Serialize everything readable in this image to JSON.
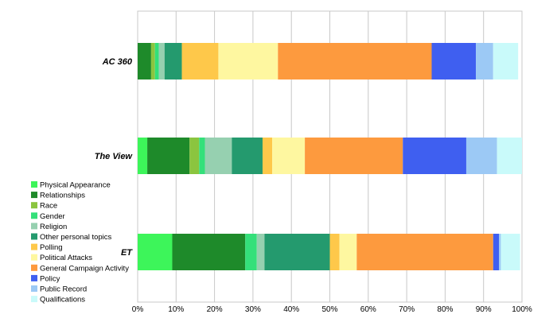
{
  "chart_data": {
    "type": "bar",
    "orientation": "horizontal",
    "stacked": "percent",
    "title": "",
    "xlabel": "",
    "ylabel": "",
    "xlim": [
      0,
      100
    ],
    "x_ticks": [
      "0%",
      "10%",
      "20%",
      "30%",
      "40%",
      "50%",
      "60%",
      "70%",
      "80%",
      "90%",
      "100%"
    ],
    "grid": "vertical",
    "legend_position": "left",
    "categories": [
      "AC 360",
      "The View",
      "ET"
    ],
    "series": [
      {
        "name": "Physical Appearance",
        "color": "#3df55a",
        "values": [
          0.0,
          2.5,
          9.0
        ]
      },
      {
        "name": "Relationships",
        "color": "#1e8a2a",
        "values": [
          3.5,
          11.0,
          19.0
        ]
      },
      {
        "name": "Race",
        "color": "#8bc53f",
        "values": [
          1.0,
          2.5,
          0.0
        ]
      },
      {
        "name": "Gender",
        "color": "#34e07a",
        "values": [
          1.0,
          1.5,
          3.0
        ]
      },
      {
        "name": "Religion",
        "color": "#96d0b0",
        "values": [
          1.5,
          7.0,
          2.0
        ]
      },
      {
        "name": "Other personal topics",
        "color": "#249a6e",
        "values": [
          4.5,
          8.0,
          17.0
        ]
      },
      {
        "name": "Polling",
        "color": "#fec84a",
        "values": [
          9.5,
          2.5,
          2.5
        ]
      },
      {
        "name": "Political Attacks",
        "color": "#fef7a0",
        "values": [
          15.5,
          8.5,
          4.5
        ]
      },
      {
        "name": "General Campaign Activity",
        "color": "#fd9a3e",
        "values": [
          40.0,
          25.5,
          35.5
        ]
      },
      {
        "name": "Policy",
        "color": "#3f5ff0",
        "values": [
          11.5,
          16.5,
          1.5
        ]
      },
      {
        "name": "Public Record",
        "color": "#9cc9f5",
        "values": [
          4.5,
          8.0,
          0.5
        ]
      },
      {
        "name": "Qualifications",
        "color": "#c9fafa",
        "values": [
          6.5,
          6.5,
          5.0
        ]
      }
    ]
  }
}
